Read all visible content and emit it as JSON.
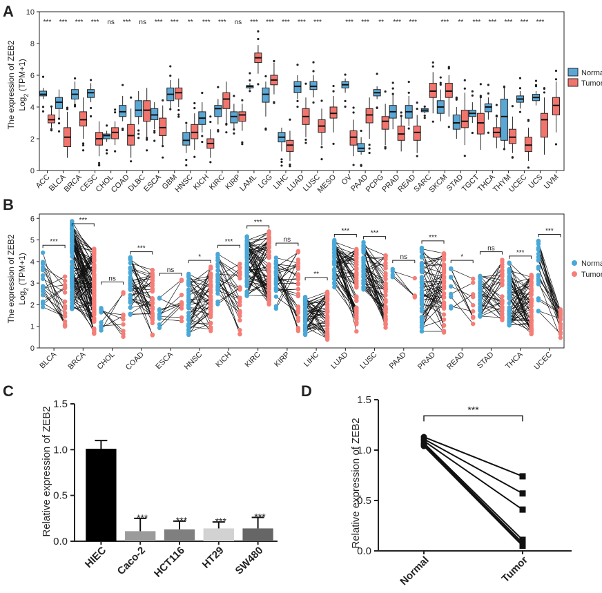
{
  "panels": {
    "A": "A",
    "B": "B",
    "C": "C",
    "D": "D"
  },
  "legend": {
    "normal": "Normal",
    "tumor": "Tumor"
  },
  "colors": {
    "normal": "#5aa7d5",
    "tumor": "#f2756d",
    "normal_point": "#4aa8d8",
    "tumor_point": "#f57f78"
  },
  "chart_data": [
    {
      "panel": "A",
      "type": "box",
      "title": "",
      "ylabel_line1": "The expression of ZEB2",
      "ylabel_line2": "Log",
      "ylabel_sub": "2",
      "ylabel_line2_tail": " (TPM+1)",
      "ylim": [
        0,
        10
      ],
      "yticks": [
        0,
        2,
        4,
        6,
        8,
        10
      ],
      "categories": [
        "ACC",
        "BLCA",
        "BRCA",
        "CESC",
        "CHOL",
        "COAD",
        "DLBC",
        "ESCA",
        "GBM",
        "HNSC",
        "KICH",
        "KIRC",
        "KIRP",
        "LAML",
        "LGG",
        "LIHC",
        "LUAD",
        "LUSC",
        "MESO",
        "OV",
        "PAAD",
        "PCPG",
        "PRAD",
        "READ",
        "SARC",
        "SKCM",
        "STAD",
        "TGCT",
        "THCA",
        "THYM",
        "UCEC",
        "UCS",
        "UVM"
      ],
      "significance": [
        "***",
        "***",
        "***",
        "***",
        "ns",
        "***",
        "ns",
        "***",
        "***",
        "**",
        "***",
        "***",
        "ns",
        "***",
        "***",
        "***",
        "***",
        "***",
        "",
        "***",
        "***",
        "**",
        "***",
        "***",
        "",
        "***",
        "**",
        "***",
        "***",
        "***",
        "***",
        "***",
        ""
      ],
      "series": [
        {
          "name": "Normal",
          "stats": [
            [
              4.5,
              4.7,
              4.8,
              5.0,
              5.2
            ],
            [
              3.3,
              3.9,
              4.3,
              4.6,
              5.1
            ],
            [
              4.2,
              4.5,
              4.8,
              5.1,
              5.6
            ],
            [
              4.3,
              4.6,
              4.9,
              5.1,
              5.5
            ],
            [
              1.8,
              2.0,
              2.2,
              2.3,
              2.5
            ],
            [
              3.1,
              3.4,
              3.7,
              4.1,
              4.7
            ],
            [
              2.9,
              3.4,
              3.8,
              4.4,
              5.0
            ],
            [
              2.6,
              3.2,
              3.5,
              3.9,
              4.3
            ],
            [
              3.9,
              4.4,
              4.8,
              5.2,
              5.7
            ],
            [
              1.1,
              1.6,
              1.9,
              2.4,
              2.9
            ],
            [
              2.4,
              2.9,
              3.3,
              3.7,
              4.3
            ],
            [
              2.9,
              3.4,
              3.9,
              4.1,
              4.5
            ],
            [
              2.6,
              3.0,
              3.4,
              3.7,
              4.2
            ],
            [
              5.1,
              5.2,
              5.3,
              5.35,
              5.5
            ],
            [
              3.4,
              4.3,
              4.8,
              5.2,
              5.6
            ],
            [
              1.2,
              1.8,
              2.1,
              2.4,
              2.7
            ],
            [
              4.5,
              4.9,
              5.3,
              5.6,
              6.0
            ],
            [
              4.6,
              5.1,
              5.3,
              5.6,
              6.0
            ],
            null,
            [
              4.9,
              5.2,
              5.4,
              5.6,
              5.8
            ],
            [
              1.0,
              1.2,
              1.4,
              1.7,
              2.1
            ],
            [
              4.5,
              4.7,
              4.9,
              5.1,
              5.3
            ],
            [
              2.6,
              3.3,
              3.7,
              4.1,
              4.8
            ],
            [
              2.8,
              3.3,
              3.7,
              4.1,
              4.7
            ],
            [
              3.6,
              3.7,
              3.8,
              3.9,
              4.0
            ],
            [
              3.1,
              3.6,
              4.0,
              4.4,
              5.1
            ],
            [
              2.0,
              2.6,
              3.0,
              3.5,
              4.0
            ],
            [
              3.0,
              3.4,
              3.6,
              3.8,
              4.3
            ],
            [
              3.2,
              3.7,
              4.0,
              4.2,
              4.6
            ],
            [
              1.4,
              1.9,
              3.4,
              4.5,
              5.2
            ],
            [
              3.9,
              4.3,
              4.5,
              4.7,
              5.0
            ],
            [
              4.1,
              4.4,
              4.6,
              4.8,
              5.0
            ],
            null
          ]
        },
        {
          "name": "Tumor",
          "stats": [
            [
              2.7,
              3.0,
              3.2,
              3.5,
              4.0
            ],
            [
              0.8,
              1.5,
              2.1,
              2.7,
              3.7
            ],
            [
              2.0,
              2.8,
              3.2,
              3.7,
              4.6
            ],
            [
              0.9,
              1.6,
              2.0,
              2.4,
              3.1
            ],
            [
              1.6,
              2.0,
              2.4,
              2.7,
              3.1
            ],
            [
              0.8,
              1.6,
              2.2,
              2.9,
              3.9
            ],
            [
              2.1,
              3.1,
              3.8,
              4.4,
              5.2
            ],
            [
              1.6,
              2.2,
              2.7,
              3.3,
              4.1
            ],
            [
              4.0,
              4.5,
              4.9,
              5.2,
              5.8
            ],
            [
              1.3,
              2.0,
              2.4,
              2.9,
              3.6
            ],
            [
              0.8,
              1.4,
              1.7,
              2.0,
              2.6
            ],
            [
              3.0,
              3.9,
              4.5,
              4.9,
              5.6
            ],
            [
              2.5,
              3.1,
              3.5,
              3.7,
              4.2
            ],
            [
              6.1,
              6.8,
              7.1,
              7.4,
              7.9
            ],
            [
              4.8,
              5.4,
              5.7,
              6.0,
              6.8
            ],
            [
              0.6,
              1.2,
              1.6,
              1.9,
              2.5
            ],
            [
              2.1,
              2.9,
              3.4,
              3.9,
              4.6
            ],
            [
              1.6,
              2.4,
              2.8,
              3.2,
              3.9
            ],
            [
              2.4,
              3.3,
              3.6,
              4.0,
              4.7
            ],
            [
              0.9,
              1.6,
              2.1,
              2.5,
              3.2
            ],
            [
              2.0,
              3.0,
              3.5,
              3.9,
              4.6
            ],
            [
              1.6,
              2.6,
              3.1,
              3.4,
              4.2
            ],
            [
              1.2,
              1.9,
              2.3,
              2.8,
              3.4
            ],
            [
              1.1,
              1.9,
              2.4,
              2.8,
              3.5
            ],
            [
              3.6,
              4.6,
              5.0,
              5.5,
              6.2
            ],
            [
              3.4,
              4.6,
              5.0,
              5.5,
              6.0
            ],
            [
              1.6,
              2.7,
              3.1,
              3.8,
              4.9
            ],
            [
              1.3,
              2.3,
              3.0,
              3.6,
              4.6
            ],
            [
              1.4,
              2.1,
              2.4,
              2.7,
              3.3
            ],
            [
              1.1,
              1.7,
              2.1,
              2.6,
              3.4
            ],
            [
              0.6,
              1.2,
              1.6,
              2.1,
              2.7
            ],
            [
              1.0,
              2.1,
              3.2,
              3.6,
              4.6
            ],
            [
              2.4,
              3.5,
              4.1,
              4.6,
              5.6
            ]
          ]
        }
      ]
    },
    {
      "panel": "B",
      "type": "paired-dot",
      "ylabel_line1": "The expression of ZEB2",
      "ylabel_line2": "Log",
      "ylabel_sub": "2",
      "ylabel_line2_tail": " (TPM+1)",
      "ylim": [
        0,
        6.2
      ],
      "yticks": [
        0,
        1,
        2,
        3,
        4,
        5,
        6
      ],
      "categories": [
        "BLCA",
        "BRCA",
        "CHOL",
        "COAD",
        "ESCA",
        "HNSC",
        "KICH",
        "KIRC",
        "KIRP",
        "LIHC",
        "LUAD",
        "LUSC",
        "PAAD",
        "PRAD",
        "READ",
        "STAD",
        "THCA",
        "UCEC"
      ],
      "significance": [
        "***",
        "***",
        "ns",
        "***",
        "ns",
        "*",
        "***",
        "***",
        "ns",
        "**",
        "***",
        "***",
        "ns",
        "***",
        "*",
        "ns",
        "***",
        "***"
      ],
      "pairs": [
        19,
        110,
        9,
        41,
        11,
        43,
        25,
        72,
        32,
        50,
        57,
        49,
        4,
        52,
        10,
        32,
        58,
        23
      ],
      "normal_range": [
        [
          1.8,
          4.5
        ],
        [
          1.8,
          5.9
        ],
        [
          0.8,
          2.0
        ],
        [
          1.5,
          4.2
        ],
        [
          0.9,
          2.6
        ],
        [
          0.6,
          3.5
        ],
        [
          1.5,
          4.5
        ],
        [
          2.4,
          5.2
        ],
        [
          1.8,
          4.2
        ],
        [
          0.6,
          2.4
        ],
        [
          2.8,
          5.0
        ],
        [
          2.7,
          4.9
        ],
        [
          3.0,
          3.8
        ],
        [
          0.7,
          4.7
        ],
        [
          1.5,
          3.8
        ],
        [
          1.3,
          3.4
        ],
        [
          1.0,
          4.0
        ],
        [
          1.6,
          5.0
        ]
      ],
      "tumor_range": [
        [
          0.9,
          3.5
        ],
        [
          0.6,
          4.6
        ],
        [
          0.5,
          2.8
        ],
        [
          0.4,
          3.7
        ],
        [
          1.0,
          3.2
        ],
        [
          0.7,
          3.8
        ],
        [
          0.6,
          4.0
        ],
        [
          2.0,
          5.4
        ],
        [
          0.5,
          4.6
        ],
        [
          0.2,
          3.0
        ],
        [
          0.7,
          4.6
        ],
        [
          0.9,
          4.4
        ],
        [
          2.2,
          3.4
        ],
        [
          0.6,
          4.4
        ],
        [
          0.8,
          3.4
        ],
        [
          1.0,
          4.2
        ],
        [
          0.6,
          3.4
        ],
        [
          0.3,
          1.8
        ]
      ]
    },
    {
      "panel": "C",
      "type": "bar",
      "ylabel": "Relative expression of ZEB2",
      "ylim": [
        0,
        1.5
      ],
      "yticks": [
        "0.0",
        "0.5",
        "1.0",
        "1.5"
      ],
      "categories": [
        "HIEC",
        "Caco-2",
        "HCT116",
        "HT29",
        "SW480"
      ],
      "values": [
        1.01,
        0.11,
        0.13,
        0.14,
        0.14
      ],
      "errors": [
        0.09,
        0.14,
        0.09,
        0.07,
        0.12
      ],
      "significance": [
        "",
        "***",
        "***",
        "***",
        "***"
      ],
      "colors": [
        "#000000",
        "#9b9b9b",
        "#7f7f7f",
        "#d2d2d2",
        "#666666"
      ]
    },
    {
      "panel": "D",
      "type": "paired-line",
      "ylabel": "Relative expression of ZEB2",
      "ylim": [
        0,
        1.5
      ],
      "yticks": [
        "0.0",
        "0.5",
        "1.0",
        "1.5"
      ],
      "categories": [
        "Normal",
        "Tumor"
      ],
      "significance": "***",
      "pairs": [
        [
          1.13,
          0.74
        ],
        [
          1.11,
          0.57
        ],
        [
          1.09,
          0.41
        ],
        [
          1.07,
          0.11
        ],
        [
          1.06,
          0.08
        ],
        [
          1.05,
          0.06
        ],
        [
          1.04,
          0.05
        ]
      ]
    }
  ]
}
